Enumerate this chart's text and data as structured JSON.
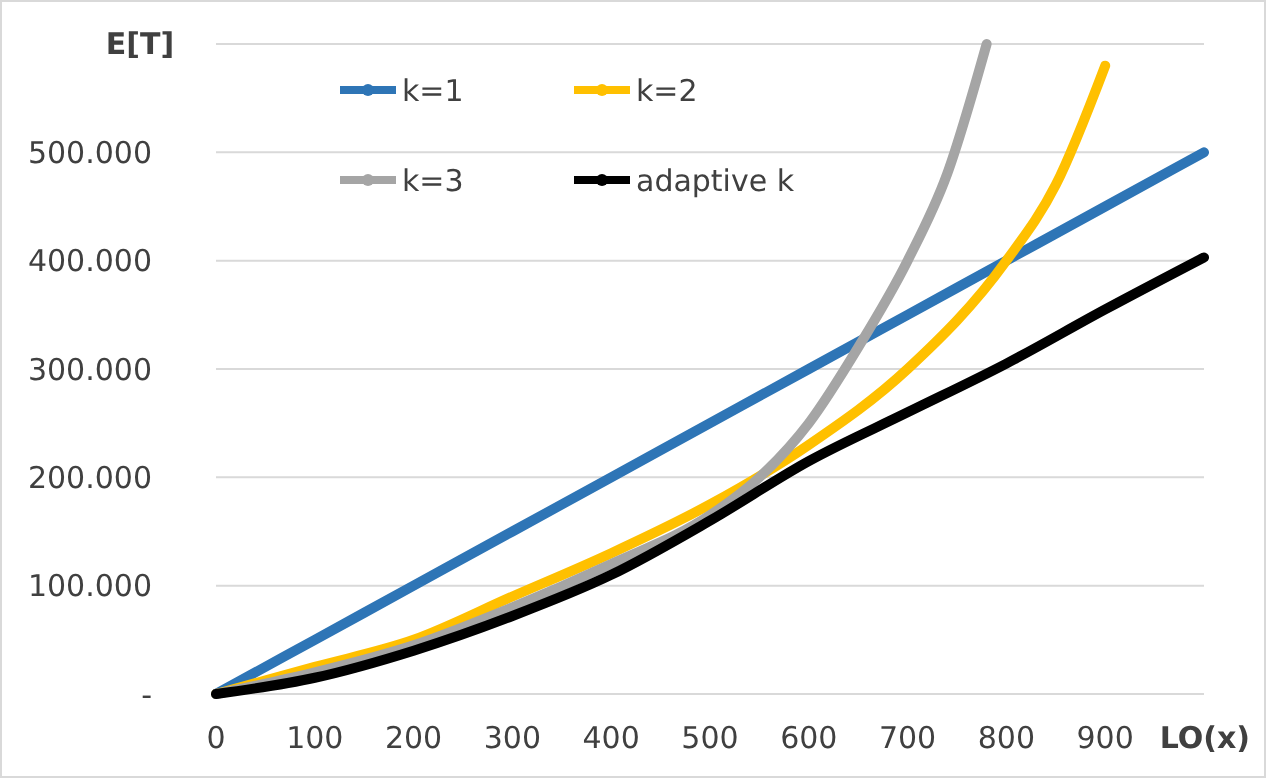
{
  "chart_data": {
    "type": "line",
    "xlabel": "LO(x)",
    "ylabel": "E[T]",
    "xlim": [
      0,
      1000
    ],
    "xticks": [
      0,
      100,
      200,
      300,
      400,
      500,
      600,
      700,
      800,
      900
    ],
    "ylim": [
      0,
      600000
    ],
    "yticks": [
      {
        "value": 0,
        "label": "-"
      },
      {
        "value": 100000,
        "label": "100.000"
      },
      {
        "value": 200000,
        "label": "200.000"
      },
      {
        "value": 300000,
        "label": "300.000"
      },
      {
        "value": 400000,
        "label": "400.000"
      },
      {
        "value": 500000,
        "label": "500.000"
      },
      {
        "value": 600000,
        "label": null
      }
    ],
    "grid": "y",
    "legend": "top left",
    "series": [
      {
        "name": "k=1",
        "color": "#2e75b6",
        "x": [
          0,
          100,
          200,
          300,
          400,
          500,
          600,
          700,
          800,
          900,
          1000
        ],
        "values": [
          0,
          50000,
          100000,
          150000,
          200000,
          250000,
          300000,
          350000,
          400000,
          450000,
          500000
        ]
      },
      {
        "name": "k=2",
        "color": "#ffc000",
        "x": [
          0,
          100,
          200,
          300,
          400,
          500,
          600,
          700,
          800,
          850,
          900
        ],
        "values": [
          0,
          25000,
          50000,
          90000,
          130000,
          175000,
          230000,
          300000,
          400000,
          470000,
          580000
        ]
      },
      {
        "name": "k=3",
        "color": "#a5a5a5",
        "x": [
          0,
          100,
          200,
          300,
          400,
          500,
          550,
          600,
          650,
          700,
          740,
          780
        ],
        "values": [
          0,
          20000,
          45000,
          80000,
          120000,
          165000,
          200000,
          250000,
          320000,
          400000,
          480000,
          600000
        ]
      },
      {
        "name": "adaptive k",
        "color": "#000000",
        "x": [
          0,
          100,
          200,
          300,
          400,
          500,
          600,
          700,
          800,
          900,
          1000
        ],
        "values": [
          0,
          15000,
          40000,
          72000,
          110000,
          160000,
          215000,
          260000,
          305000,
          355000,
          403000
        ]
      }
    ]
  }
}
